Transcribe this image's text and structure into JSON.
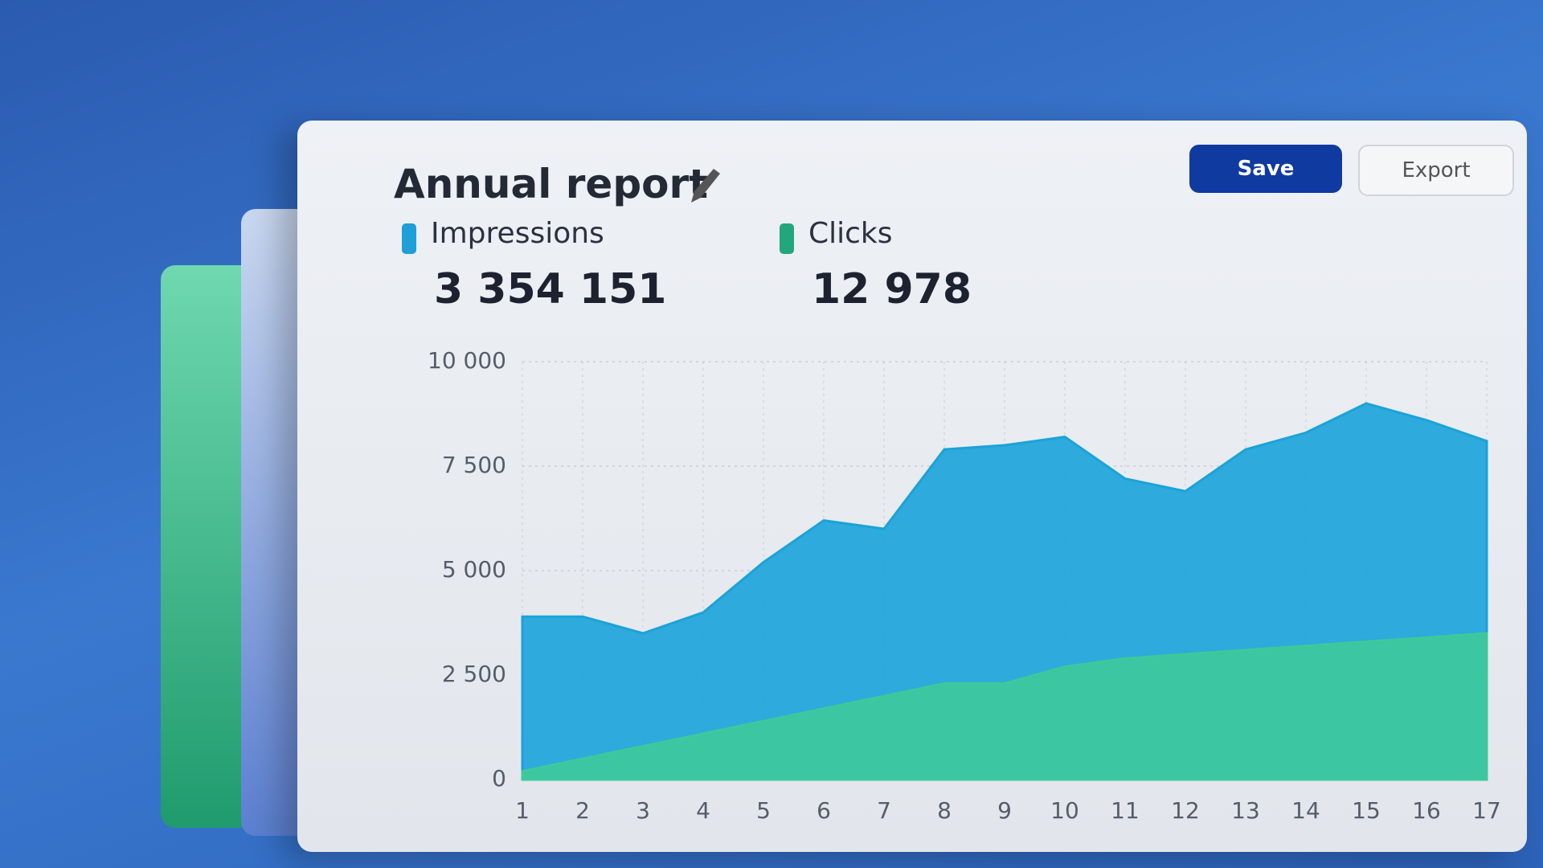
{
  "header": {
    "title": "Annual report",
    "save": "Save",
    "export": "Export"
  },
  "stats": [
    {
      "name": "Impressions",
      "total": "3 354 151",
      "color": "#1f9fd8"
    },
    {
      "name": "Clicks",
      "total": "12 978",
      "color": "#22a77a"
    }
  ],
  "chart_data": {
    "type": "area",
    "x": [
      1,
      2,
      3,
      4,
      5,
      6,
      7,
      8,
      9,
      10,
      11,
      12,
      13,
      14,
      15,
      16,
      17
    ],
    "xlim": [
      1,
      17
    ],
    "ylim": [
      0,
      10000
    ],
    "yticks": [
      0,
      {
        "value": 2500,
        "label": "2 500"
      },
      {
        "value": 5000,
        "label": "5 000"
      },
      {
        "value": 7500,
        "label": "7 500"
      },
      {
        "value": 10000,
        "label": "10 000"
      }
    ],
    "grid": true,
    "series": [
      {
        "name": "Impressions",
        "color": "#1aa3d9",
        "values": [
          3900,
          3900,
          3500,
          4000,
          5200,
          6200,
          6000,
          7900,
          8000,
          8200,
          7200,
          6900,
          7900,
          8300,
          9000,
          8600,
          8100
        ]
      },
      {
        "name": "Clicks",
        "color": "#3ec99a",
        "values": [
          200,
          500,
          800,
          1100,
          1400,
          1700,
          2000,
          2300,
          2300,
          2700,
          2900,
          3000,
          3100,
          3200,
          3300,
          3400,
          3500
        ]
      }
    ]
  }
}
